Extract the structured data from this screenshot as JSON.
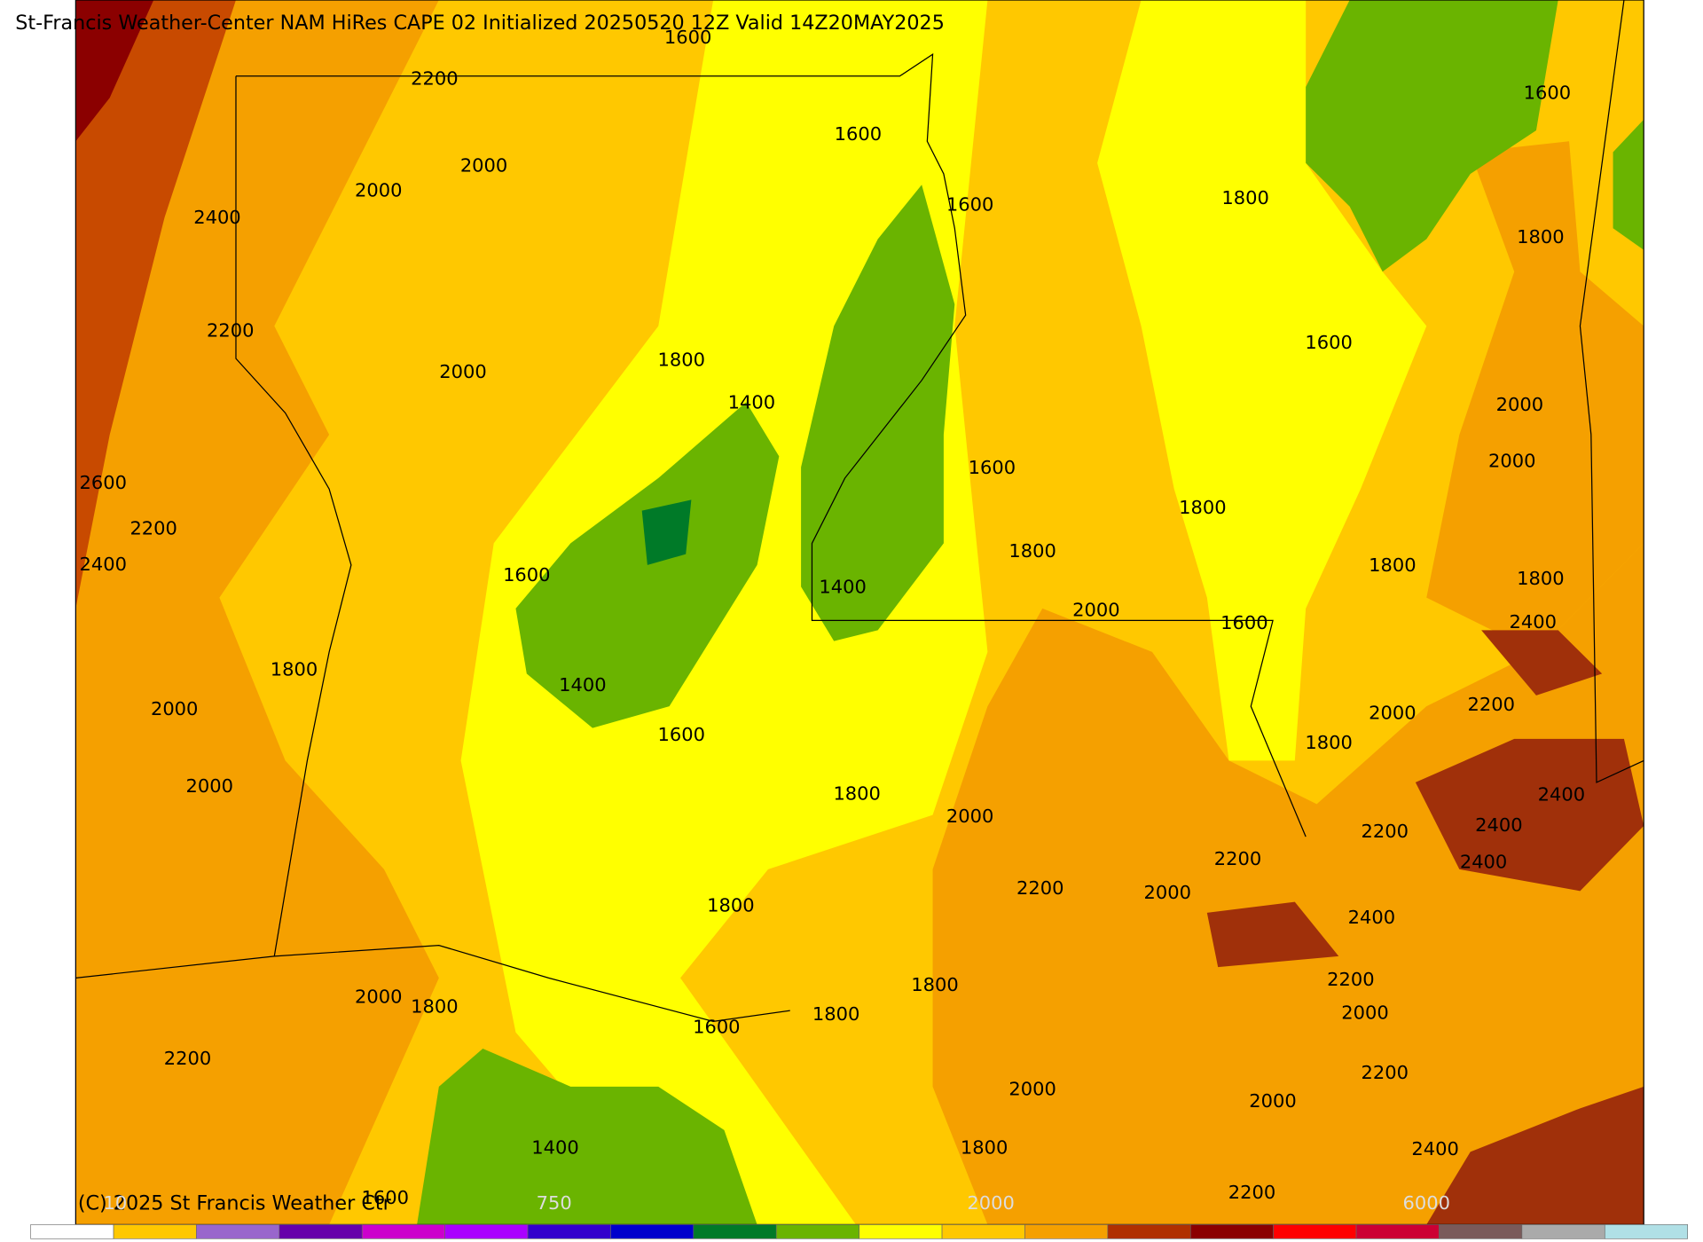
{
  "map": {
    "title": "St-Francis Weather-Center NAM HiRes CAPE  02 Initialized 20250520 12Z Valid 14Z20MAY2025",
    "copyright": "(C) 2025 St Francis Weather Ctr",
    "contour_labels": [
      "1600",
      "2200",
      "1600",
      "1600",
      "1800",
      "1600",
      "2000",
      "2000",
      "2400",
      "1800",
      "2200",
      "1600",
      "1800",
      "2000",
      "1400",
      "2000",
      "1600",
      "2000",
      "2600",
      "1800",
      "2200",
      "1800",
      "1800",
      "2400",
      "1600",
      "1800",
      "1400",
      "2000",
      "1600",
      "2400",
      "1800",
      "1400",
      "2000",
      "2200",
      "2000",
      "1600",
      "1800",
      "2000",
      "1800",
      "2400",
      "2000",
      "2400",
      "2200",
      "2200",
      "2400",
      "2200",
      "2000",
      "1800",
      "2400",
      "2200",
      "1800",
      "2000",
      "1800",
      "1800",
      "2000",
      "1600",
      "2200",
      "2200",
      "2000",
      "2000",
      "1400",
      "1800",
      "2400",
      "1600",
      "2200"
    ],
    "colorbar": {
      "labels": [
        "10",
        "750",
        "2000",
        "6000"
      ],
      "colors": [
        "#ffffff",
        "#ffc800",
        "#9966cc",
        "#6600aa",
        "#cc00cc",
        "#aa00ff",
        "#3300cc",
        "#0000cc",
        "#007a28",
        "#6ab400",
        "#ffff00",
        "#ffc800",
        "#f5a000",
        "#b03000",
        "#8b0000",
        "#ff0000",
        "#cc0033",
        "#7a5a5a",
        "#aaaaaa",
        "#b0e0e6"
      ]
    }
  }
}
